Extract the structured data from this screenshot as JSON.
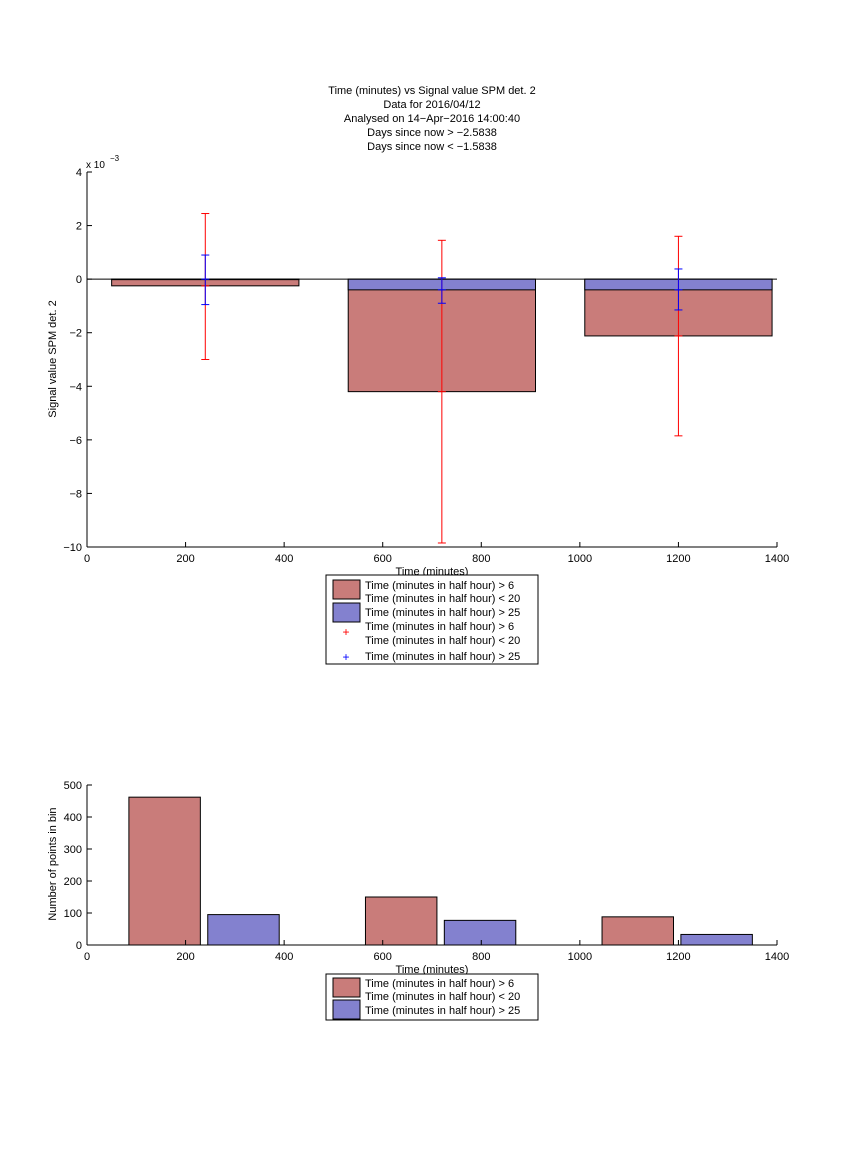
{
  "page": {
    "background": "#ffffff"
  },
  "chart_data": [
    {
      "type": "bar",
      "title_lines": [
        "Time (minutes) vs Signal value SPM det. 2",
        "Data for 2016/04/12",
        "Analysed on 14−Apr−2016 14:00:40",
        "Days since now > −2.5838",
        "Days since now < −1.5838"
      ],
      "xlabel": "Time (minutes)",
      "ylabel": "Signal value SPM det. 2",
      "y_exponent": "x 10",
      "y_exponent_power": "−3",
      "xlim": [
        0,
        1400
      ],
      "ylim": [
        -10,
        4
      ],
      "x_ticks": [
        0,
        200,
        400,
        600,
        800,
        1000,
        1200,
        1400
      ],
      "x_tick_labels": [
        "0",
        "200",
        "400",
        "600",
        "800",
        "1000",
        "1200",
        "1400"
      ],
      "y_ticks": [
        -10,
        -8,
        -6,
        -4,
        -2,
        0,
        2,
        4
      ],
      "y_tick_labels": [
        "−10",
        "−8",
        "−6",
        "−4",
        "−2",
        "0",
        "2",
        "4"
      ],
      "grid": false,
      "legend_placement": "below-plot",
      "legend": [
        {
          "label": "Time (minutes in half hour) > 6",
          "marker": "patch",
          "color": "#c97c7a"
        },
        {
          "label": "Time (minutes in half hour) < 20",
          "marker": "none",
          "color": ""
        },
        {
          "label": "Time (minutes in half hour) > 25",
          "marker": "patch",
          "color": "#8381cf"
        },
        {
          "label": "Time (minutes in half hour) > 6",
          "marker": "plus",
          "color": "#ff0000"
        },
        {
          "label": "Time (minutes in half hour) < 20",
          "marker": "none",
          "color": ""
        },
        {
          "label": "Time (minutes in half hour) > 25",
          "marker": "plus",
          "color": "#0000ff"
        }
      ],
      "bars": [
        {
          "series": "red",
          "x0": 50,
          "x1": 430,
          "value": -0.25,
          "color": "#c97c7a"
        },
        {
          "series": "blue",
          "x0": 50,
          "x1": 430,
          "value": 0.0,
          "color": "#8381cf"
        },
        {
          "series": "red",
          "x0": 530,
          "x1": 910,
          "value": -4.2,
          "color": "#c97c7a"
        },
        {
          "series": "blue",
          "x0": 530,
          "x1": 910,
          "value": -0.4,
          "color": "#8381cf"
        },
        {
          "series": "red",
          "x0": 1010,
          "x1": 1390,
          "value": -2.12,
          "color": "#c97c7a"
        },
        {
          "series": "blue",
          "x0": 1010,
          "x1": 1390,
          "value": -0.4,
          "color": "#8381cf"
        }
      ],
      "error_bars": [
        {
          "series": "red",
          "x": 240,
          "center": -0.25,
          "lower": -3.0,
          "upper": 2.45,
          "color": "#ff0000"
        },
        {
          "series": "blue",
          "x": 240,
          "center": 0.0,
          "lower": -0.95,
          "upper": 0.9,
          "color": "#0000ff"
        },
        {
          "series": "red",
          "x": 720,
          "center": -4.2,
          "lower": -9.85,
          "upper": 1.45,
          "color": "#ff0000"
        },
        {
          "series": "blue",
          "x": 720,
          "center": -0.4,
          "lower": -0.9,
          "upper": 0.05,
          "color": "#0000ff"
        },
        {
          "series": "red",
          "x": 1200,
          "center": -2.12,
          "lower": -5.85,
          "upper": 1.6,
          "color": "#ff0000"
        },
        {
          "series": "blue",
          "x": 1200,
          "center": -0.4,
          "lower": -1.15,
          "upper": 0.38,
          "color": "#0000ff"
        }
      ],
      "zero_line": true
    },
    {
      "type": "bar",
      "xlabel": "Time (minutes)",
      "ylabel": "Number of points in bin",
      "xlim": [
        0,
        1400
      ],
      "ylim": [
        0,
        500
      ],
      "x_ticks": [
        0,
        200,
        400,
        600,
        800,
        1000,
        1200,
        1400
      ],
      "x_tick_labels": [
        "0",
        "200",
        "400",
        "600",
        "800",
        "1000",
        "1200",
        "1400"
      ],
      "y_ticks": [
        0,
        100,
        200,
        300,
        400,
        500
      ],
      "y_tick_labels": [
        "0",
        "100",
        "200",
        "300",
        "400",
        "500"
      ],
      "grid": false,
      "legend_placement": "below-plot",
      "legend": [
        {
          "label": "Time (minutes in half hour) > 6",
          "marker": "patch",
          "color": "#c97c7a"
        },
        {
          "label": "Time (minutes in half hour) < 20",
          "marker": "none",
          "color": ""
        },
        {
          "label": "Time (minutes in half hour) > 25",
          "marker": "patch",
          "color": "#8381cf"
        }
      ],
      "bars": [
        {
          "series": "red",
          "x0": 85,
          "x1": 230,
          "value": 462,
          "color": "#c97c7a"
        },
        {
          "series": "blue",
          "x0": 245,
          "x1": 390,
          "value": 95,
          "color": "#8381cf"
        },
        {
          "series": "red",
          "x0": 565,
          "x1": 710,
          "value": 150,
          "color": "#c97c7a"
        },
        {
          "series": "blue",
          "x0": 725,
          "x1": 870,
          "value": 77,
          "color": "#8381cf"
        },
        {
          "series": "red",
          "x0": 1045,
          "x1": 1190,
          "value": 88,
          "color": "#c97c7a"
        },
        {
          "series": "blue",
          "x0": 1205,
          "x1": 1350,
          "value": 33,
          "color": "#8381cf"
        }
      ],
      "zero_line": false
    }
  ]
}
